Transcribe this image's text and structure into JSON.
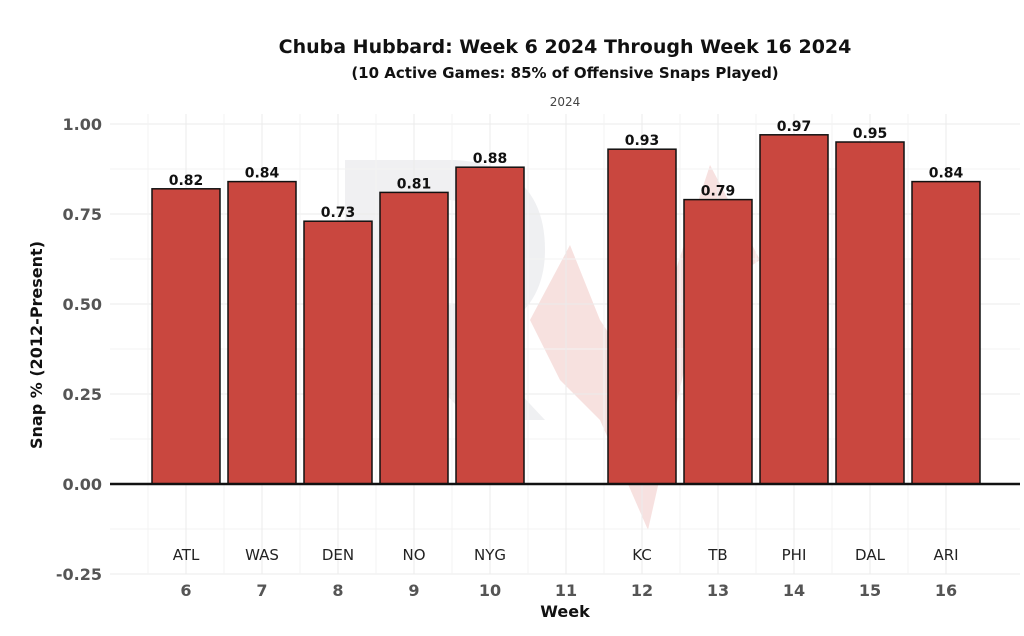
{
  "chart_data": {
    "type": "bar",
    "title": "Chuba Hubbard: Week 6 2024 Through Week 16 2024",
    "subtitle": "(10 Active Games: 85% of Offensive Snaps Played)",
    "facet_label": "2024",
    "xlabel": "Week",
    "ylabel": "Snap % (2012-Present)",
    "ylim": [
      -0.25,
      1.0
    ],
    "yticks": [
      "-0.25",
      "0.00",
      "0.25",
      "0.50",
      "0.75",
      "1.00"
    ],
    "bar_color": "#c9473f",
    "grid": true,
    "categories": [
      "6",
      "7",
      "8",
      "9",
      "10",
      "11",
      "12",
      "13",
      "14",
      "15",
      "16"
    ],
    "opponents": [
      "ATL",
      "WAS",
      "DEN",
      "NO",
      "NYG",
      "",
      "KC",
      "TB",
      "PHI",
      "DAL",
      "ARI"
    ],
    "values": [
      0.82,
      0.84,
      0.73,
      0.81,
      0.88,
      null,
      0.93,
      0.79,
      0.97,
      0.95,
      0.84
    ],
    "value_labels": [
      "0.82",
      "0.84",
      "0.73",
      "0.81",
      "0.88",
      "",
      "0.93",
      "0.79",
      "0.97",
      "0.95",
      "0.84"
    ]
  }
}
